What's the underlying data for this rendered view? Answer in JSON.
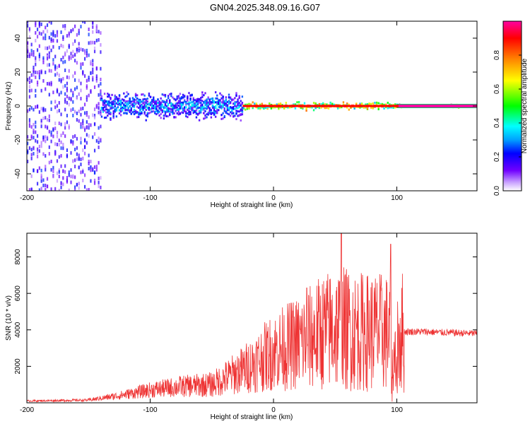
{
  "title": "GN04.2025.348.09.16.G07",
  "chart_data": [
    {
      "type": "heatmap",
      "xlabel": "Height of straight line (km)",
      "ylabel": "Frequency (Hz)",
      "xlim": [
        -200,
        165
      ],
      "ylim": [
        -50,
        50
      ],
      "xticks": [
        -200,
        -100,
        0,
        100
      ],
      "yticks": [
        -40,
        -20,
        0,
        20,
        40
      ],
      "colorbar": {
        "label": "Normalized spectral amplitude",
        "range": [
          0,
          1
        ],
        "ticks": [
          "0.0",
          "0.2",
          "0.4",
          "0.6",
          "0.8"
        ],
        "colors": [
          "#ffffff",
          "#c8a0ff",
          "#7000ff",
          "#0000ff",
          "#00a0ff",
          "#00ffff",
          "#00ff00",
          "#ffff00",
          "#ff8000",
          "#ff0000",
          "#ff00a0"
        ]
      },
      "bands": [
        {
          "x0": -200,
          "x1": -140,
          "spread_hz": 50,
          "amplitude": 0.25
        },
        {
          "x0": -140,
          "x1": -25,
          "spread_hz": 10,
          "amplitude": 0.45
        },
        {
          "x0": -25,
          "x1": 100,
          "spread_hz": 3,
          "amplitude": 0.9
        },
        {
          "x0": 100,
          "x1": 165,
          "spread_hz": 1,
          "amplitude": 1.0
        }
      ]
    },
    {
      "type": "line",
      "xlabel": "Height of straight line (km)",
      "ylabel": "SNR (10 * v/v)",
      "xlim": [
        -200,
        165
      ],
      "ylim": [
        0,
        9300
      ],
      "xticks": [
        -200,
        -100,
        0,
        100
      ],
      "yticks": [
        2000,
        4000,
        6000,
        8000
      ],
      "color": "#ee3333",
      "x": [
        -200,
        -150,
        -125,
        -100,
        -75,
        -50,
        -25,
        0,
        25,
        40,
        55,
        70,
        85,
        95,
        100,
        105,
        120,
        140,
        165
      ],
      "values": [
        100,
        150,
        400,
        700,
        900,
        1000,
        1800,
        2800,
        3400,
        3900,
        4100,
        3900,
        3900,
        3800,
        3600,
        3900,
        3900,
        3850,
        3800
      ],
      "annotations": [
        {
          "x": 55,
          "y": 9300
        },
        {
          "x": 95,
          "y": 8700
        },
        {
          "x": 27,
          "y": 6300
        }
      ]
    }
  ]
}
